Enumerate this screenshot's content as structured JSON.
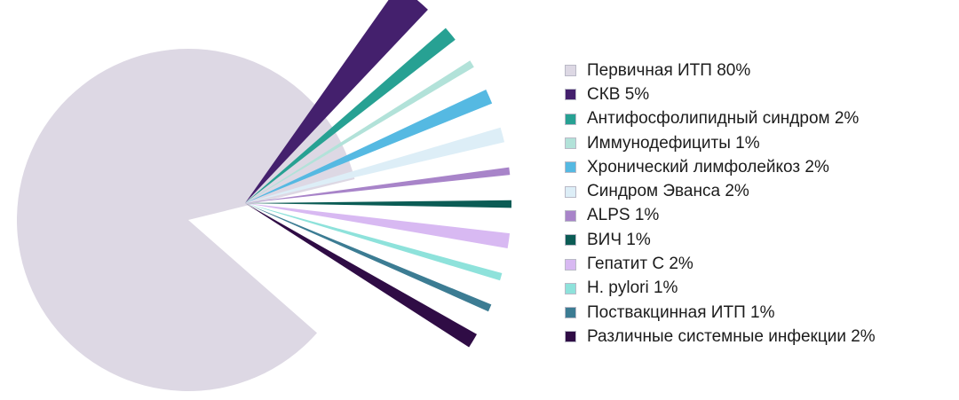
{
  "chart_data": {
    "type": "pie",
    "title": "",
    "legend_position": "right",
    "slices": [
      {
        "label": "Первичная ИТП 80%",
        "value": 80,
        "color": "#ddd8e4"
      },
      {
        "label": "СКВ 5%",
        "value": 5,
        "color": "#44206d"
      },
      {
        "label": "Антифосфолипидный синдром 2%",
        "value": 2,
        "color": "#27a193"
      },
      {
        "label": "Иммунодефициты 1%",
        "value": 1,
        "color": "#b2e2d9"
      },
      {
        "label": "Хронический лимфолейкоз 2%",
        "value": 2,
        "color": "#55b9e2"
      },
      {
        "label": "Синдром Эванса 2%",
        "value": 2,
        "color": "#ddeef7"
      },
      {
        "label": "ALPS 1%",
        "value": 1,
        "color": "#a884c9"
      },
      {
        "label": "ВИЧ 1%",
        "value": 1,
        "color": "#0b5c55"
      },
      {
        "label": "Гепатит С 2%",
        "value": 2,
        "color": "#d8b9f2"
      },
      {
        "label": "H. pylori 1%",
        "value": 1,
        "color": "#8ee2db"
      },
      {
        "label": "Поствакцинная ИТП 1%",
        "value": 1,
        "color": "#3c7c93"
      },
      {
        "label": "Различные системные инфекции 2%",
        "value": 2,
        "color": "#2f0c45"
      }
    ]
  }
}
